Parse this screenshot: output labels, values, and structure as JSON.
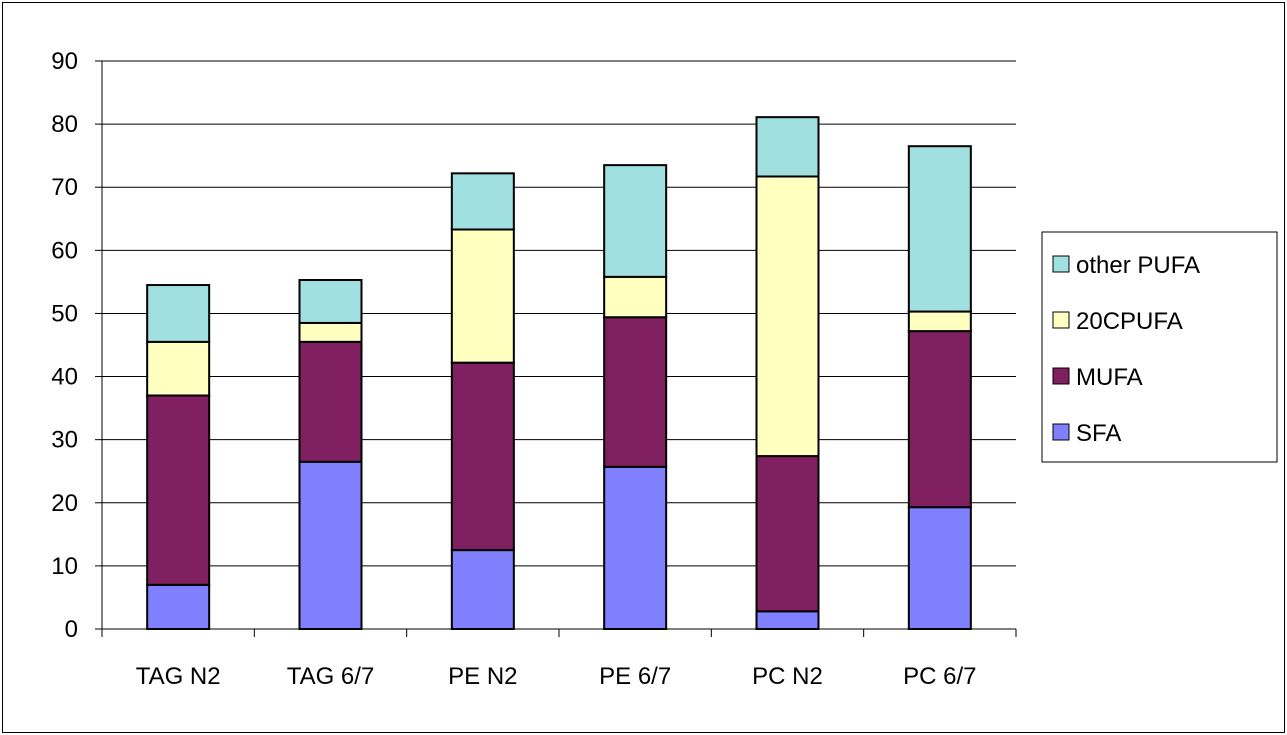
{
  "chart_data": {
    "type": "bar",
    "stacked": true,
    "categories": [
      "TAG N2",
      "TAG 6/7",
      "PE N2",
      "PE 6/7",
      "PC N2",
      "PC 6/7"
    ],
    "series": [
      {
        "name": "SFA",
        "color": "#8080ff",
        "values": [
          7.0,
          26.5,
          12.5,
          25.7,
          2.8,
          19.3
        ]
      },
      {
        "name": "MUFA",
        "color": "#802060",
        "values": [
          30.0,
          19.0,
          29.7,
          23.7,
          24.6,
          27.9
        ]
      },
      {
        "name": "20CPUFA",
        "color": "#ffffc0",
        "values": [
          8.5,
          3.0,
          21.1,
          6.4,
          44.3,
          3.1
        ]
      },
      {
        "name": "other PUFA",
        "color": "#a0e0e0",
        "values": [
          9.0,
          6.8,
          8.9,
          17.7,
          9.4,
          26.2
        ]
      }
    ],
    "ylim": [
      0,
      90
    ],
    "yticks": [
      0,
      10,
      20,
      30,
      40,
      50,
      60,
      70,
      80,
      90
    ],
    "grid": true,
    "legend_position": "right",
    "legend_order": [
      "other PUFA",
      "20CPUFA",
      "MUFA",
      "SFA"
    ]
  }
}
